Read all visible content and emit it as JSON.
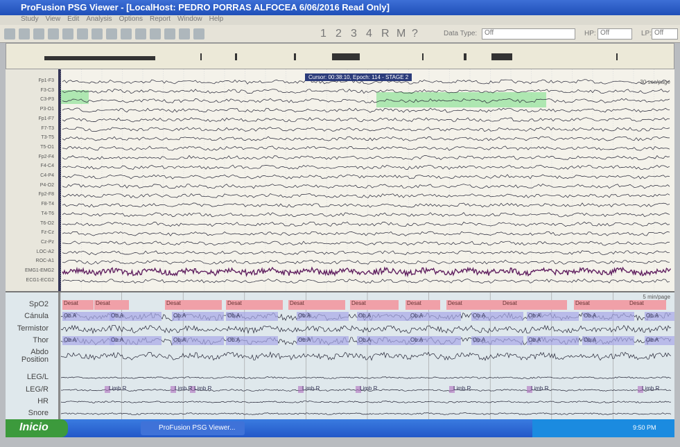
{
  "window": {
    "title": "ProFusion PSG Viewer - [LocalHost: PEDRO PORRAS ALFOCEA 6/06/2016 Read Only]",
    "menu": [
      "Study",
      "View",
      "Edit",
      "Analysis",
      "Options",
      "Report",
      "Window",
      "Help"
    ],
    "toolbar": {
      "buttons": [
        "1",
        "2",
        "3",
        "4",
        "R",
        "M",
        "?"
      ],
      "data_type_label": "Data Type:",
      "data_type": "Off",
      "hp_label": "HP:",
      "hp": "Off",
      "lp_label": "LP:",
      "lp": "Off"
    }
  },
  "eeg": {
    "cursor": "Cursor: 00:38:10, Epoch: 114 - STAGE 2",
    "scale": "30 sec/page",
    "channels": [
      "Fp1-F3",
      "F3-C3",
      "C3-P3",
      "P3-O1",
      "Fp1-F7",
      "F7-T3",
      "T3-T5",
      "T5-O1",
      "Fp2-F4",
      "F4-C4",
      "C4-P4",
      "P4-O2",
      "Fp2-F8",
      "F8-T4",
      "T4-T6",
      "T6-O2",
      "Fz-Cz",
      "Cz-Pz",
      "LOC-A2",
      "ROC-A1",
      "EMG1-EMG2",
      "ECG1-ECG2"
    ]
  },
  "resp": {
    "scale": "5 min/page",
    "channels": [
      "SpO2",
      "Cánula",
      "Termistor",
      "Thor",
      "Abdo Position",
      "LEG/L",
      "LEG/R",
      "HR",
      "Snore"
    ],
    "desat": [
      "Desat",
      "Desat",
      "Desat",
      "Desat",
      "Desat",
      "Desat",
      "Desat",
      "Desat",
      "Desat",
      "Desat",
      "Desat"
    ],
    "canula_events": [
      "Ob.A",
      "Ob.A",
      "Ob.A",
      "Ob.A",
      "Ob.A",
      "Ob.A",
      "Ob.A",
      "Ob.A",
      "Ob.A",
      "Ob.A",
      "Ob.A"
    ],
    "thor_events": [
      "Ob.A",
      "Ob.A",
      "Ob.A",
      "Ob.A",
      "Ob.A",
      "Ob.A",
      "Ob.A",
      "Ob.A",
      "Ob.A",
      "Ob.A",
      "Ob.A"
    ],
    "limb": [
      "Limb R",
      "Limb R",
      "Limb R",
      "Limb R",
      "Limb R",
      "Limb R",
      "Limb R",
      "Limb R"
    ]
  },
  "taskbar": {
    "start": "Inicio",
    "task": "ProFusion PSG Viewer...",
    "clock": "9:50 PM"
  }
}
